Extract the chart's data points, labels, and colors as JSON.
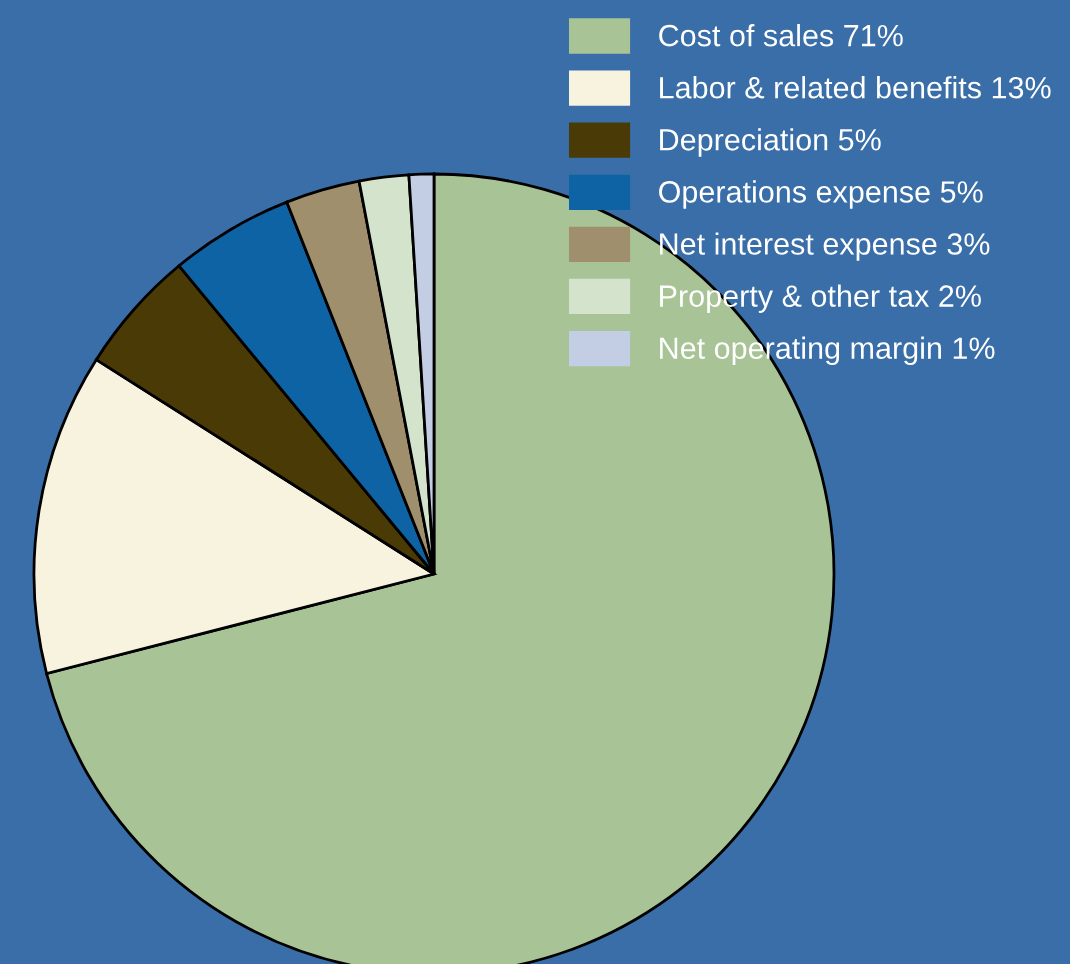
{
  "chart_data": {
    "type": "pie",
    "categories": [
      "Cost of sales 71%",
      "Labor & related benefits 13%",
      "Depreciation 5%",
      "Operations expense 5%",
      "Net interest expense 3%",
      "Property & other tax 2%",
      "Net operating margin 1%"
    ],
    "values": [
      71,
      13,
      5,
      5,
      3,
      2,
      1
    ],
    "colors": [
      "#a8c496",
      "#f8f3df",
      "#4a3a05",
      "#0e63a4",
      "#a08f6c",
      "#d3e3cc",
      "#c3cde3"
    ],
    "legend": "top right"
  }
}
